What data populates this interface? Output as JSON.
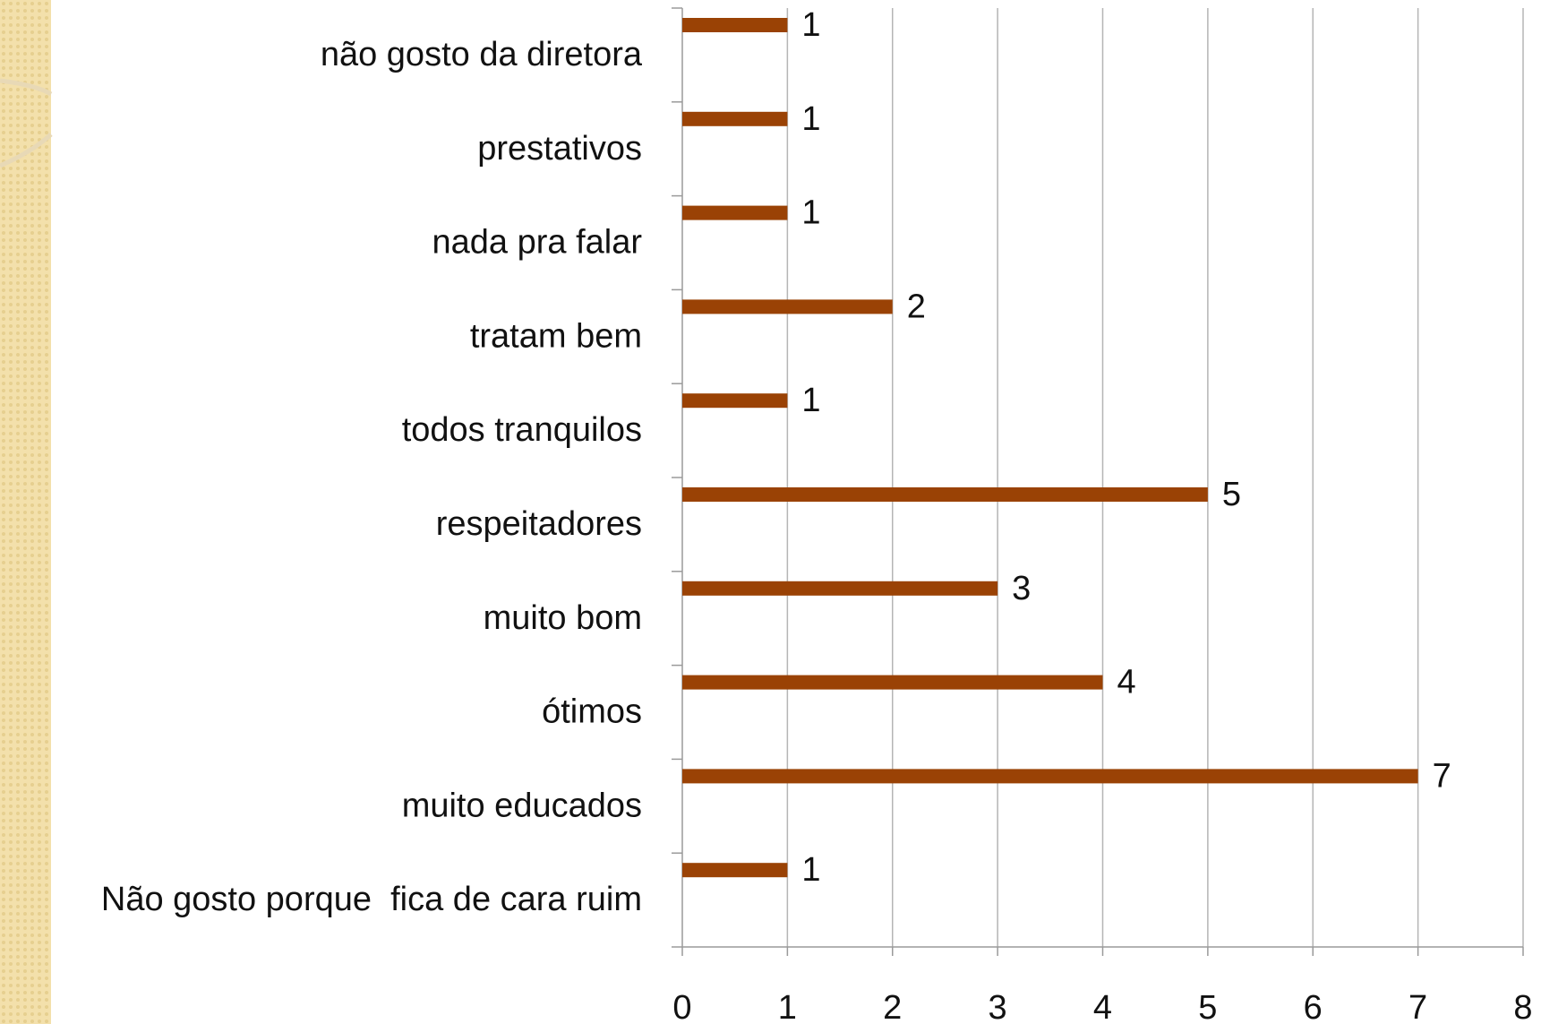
{
  "chart_data": {
    "type": "bar",
    "orientation": "horizontal",
    "categories": [
      "não gosto da diretora",
      "prestativos",
      "nada pra falar",
      "tratam bem",
      "todos tranquilos",
      "respeitadores",
      "muito bom",
      "ótimos",
      "muito educados",
      "Não gosto porque  fica de cara ruim"
    ],
    "values": [
      1,
      1,
      1,
      2,
      1,
      5,
      3,
      4,
      7,
      1
    ],
    "color": "#9a4205",
    "xlim": [
      0,
      8
    ],
    "xticks": [
      0,
      1,
      2,
      3,
      4,
      5,
      6,
      7,
      8
    ],
    "grid": true
  }
}
